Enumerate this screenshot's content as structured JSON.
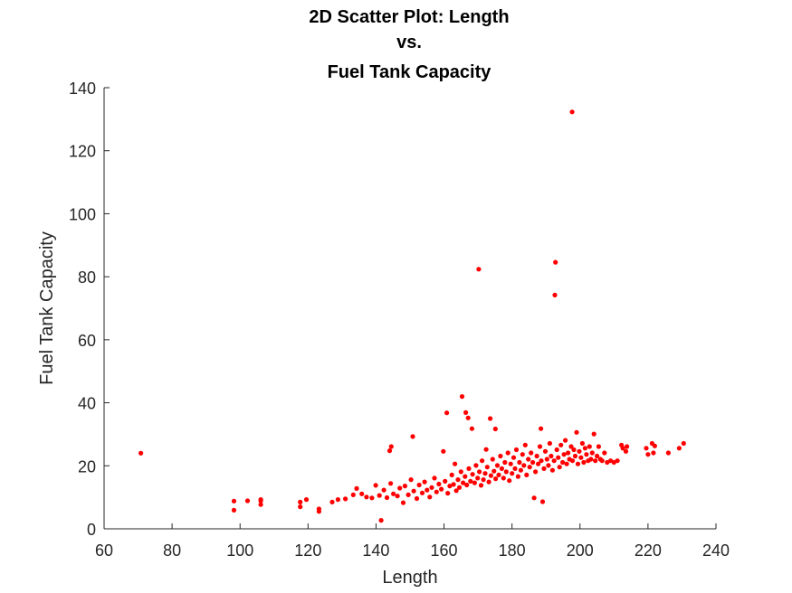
{
  "chart_data": {
    "type": "scatter",
    "title_lines": [
      "2D Scatter Plot: Length",
      "vs.",
      "Fuel Tank Capacity"
    ],
    "xlabel": "Length",
    "ylabel": "Fuel Tank Capacity",
    "xlim": [
      60,
      240
    ],
    "ylim": [
      0,
      140
    ],
    "xticks": [
      60,
      80,
      100,
      120,
      140,
      160,
      180,
      200,
      220,
      240
    ],
    "yticks": [
      0,
      20,
      40,
      60,
      80,
      100,
      120,
      140
    ],
    "grid": false,
    "marker_color": "#ff0000",
    "points": [
      [
        70.8,
        24.0
      ],
      [
        98.2,
        8.8
      ],
      [
        98.2,
        5.9
      ],
      [
        102.2,
        8.9
      ],
      [
        106.1,
        9.3
      ],
      [
        106.1,
        7.7
      ],
      [
        106.1,
        8.9
      ],
      [
        117.7,
        8.5
      ],
      [
        117.7,
        7.0
      ],
      [
        119.5,
        9.3
      ],
      [
        123.2,
        6.3
      ],
      [
        123.2,
        5.5
      ],
      [
        127.1,
        8.5
      ],
      [
        128.8,
        9.3
      ],
      [
        131.0,
        9.5
      ],
      [
        133.3,
        10.8
      ],
      [
        134.3,
        12.8
      ],
      [
        135.8,
        11.1
      ],
      [
        137.2,
        10.1
      ],
      [
        138.8,
        9.8
      ],
      [
        139.9,
        13.8
      ],
      [
        141.0,
        10.6
      ],
      [
        141.5,
        2.7
      ],
      [
        142.3,
        12.3
      ],
      [
        143.2,
        9.9
      ],
      [
        144.3,
        14.4
      ],
      [
        144.0,
        24.8
      ],
      [
        144.5,
        26.1
      ],
      [
        145.1,
        11.1
      ],
      [
        146.3,
        10.4
      ],
      [
        147.0,
        12.9
      ],
      [
        148.0,
        8.3
      ],
      [
        148.5,
        13.6
      ],
      [
        149.5,
        10.8
      ],
      [
        150.3,
        15.6
      ],
      [
        150.8,
        29.3
      ],
      [
        151.1,
        12.0
      ],
      [
        152.0,
        9.6
      ],
      [
        152.7,
        13.9
      ],
      [
        153.6,
        11.4
      ],
      [
        154.3,
        14.9
      ],
      [
        155.0,
        12.3
      ],
      [
        155.8,
        10.1
      ],
      [
        156.4,
        13.1
      ],
      [
        157.2,
        16.1
      ],
      [
        157.8,
        11.7
      ],
      [
        158.5,
        14.2
      ],
      [
        159.2,
        12.6
      ],
      [
        159.8,
        24.6
      ],
      [
        160.3,
        15.1
      ],
      [
        160.8,
        36.8
      ],
      [
        161.1,
        11.3
      ],
      [
        161.7,
        13.6
      ],
      [
        162.3,
        17.1
      ],
      [
        162.8,
        14.1
      ],
      [
        163.2,
        20.6
      ],
      [
        163.6,
        12.1
      ],
      [
        164.1,
        15.6
      ],
      [
        164.5,
        13.1
      ],
      [
        165.0,
        18.1
      ],
      [
        165.3,
        42.0
      ],
      [
        165.6,
        14.6
      ],
      [
        166.2,
        16.6
      ],
      [
        166.4,
        36.9
      ],
      [
        166.7,
        13.9
      ],
      [
        167.1,
        35.2
      ],
      [
        167.3,
        19.1
      ],
      [
        167.8,
        15.1
      ],
      [
        168.2,
        31.8
      ],
      [
        168.4,
        17.3
      ],
      [
        169.0,
        14.6
      ],
      [
        169.4,
        20.1
      ],
      [
        169.9,
        16.1
      ],
      [
        170.2,
        82.4
      ],
      [
        170.4,
        18.1
      ],
      [
        170.9,
        13.8
      ],
      [
        171.2,
        21.6
      ],
      [
        171.6,
        15.6
      ],
      [
        172.1,
        17.6
      ],
      [
        172.4,
        25.2
      ],
      [
        172.7,
        19.6
      ],
      [
        173.2,
        14.9
      ],
      [
        173.6,
        35.0
      ],
      [
        173.8,
        16.9
      ],
      [
        174.3,
        22.1
      ],
      [
        174.7,
        18.3
      ],
      [
        175.1,
        31.7
      ],
      [
        175.2,
        15.9
      ],
      [
        175.7,
        20.1
      ],
      [
        176.1,
        17.1
      ],
      [
        176.6,
        23.1
      ],
      [
        177.0,
        19.1
      ],
      [
        177.5,
        16.1
      ],
      [
        177.9,
        21.1
      ],
      [
        178.3,
        18.1
      ],
      [
        178.8,
        24.1
      ],
      [
        179.2,
        15.3
      ],
      [
        179.6,
        20.6
      ],
      [
        180.0,
        17.6
      ],
      [
        180.5,
        22.6
      ],
      [
        180.9,
        19.1
      ],
      [
        181.3,
        25.1
      ],
      [
        181.8,
        16.6
      ],
      [
        182.2,
        21.1
      ],
      [
        182.6,
        18.6
      ],
      [
        183.1,
        23.6
      ],
      [
        183.5,
        20.1
      ],
      [
        183.9,
        26.6
      ],
      [
        184.3,
        17.1
      ],
      [
        184.8,
        22.1
      ],
      [
        185.2,
        19.6
      ],
      [
        185.6,
        24.1
      ],
      [
        186.1,
        21.1
      ],
      [
        186.5,
        9.8
      ],
      [
        186.9,
        18.1
      ],
      [
        187.3,
        23.1
      ],
      [
        187.7,
        20.6
      ],
      [
        188.2,
        26.1
      ],
      [
        188.5,
        31.8
      ],
      [
        188.6,
        21.6
      ],
      [
        189.0,
        8.6
      ],
      [
        189.4,
        19.1
      ],
      [
        189.8,
        24.6
      ],
      [
        190.3,
        22.1
      ],
      [
        190.7,
        20.1
      ],
      [
        191.1,
        27.1
      ],
      [
        191.5,
        23.1
      ],
      [
        191.9,
        18.6
      ],
      [
        192.4,
        21.6
      ],
      [
        192.6,
        74.2
      ],
      [
        192.8,
        84.6
      ],
      [
        193.2,
        25.1
      ],
      [
        193.6,
        22.6
      ],
      [
        194.0,
        19.6
      ],
      [
        194.4,
        26.6
      ],
      [
        194.9,
        21.1
      ],
      [
        195.3,
        23.6
      ],
      [
        195.7,
        28.1
      ],
      [
        196.1,
        20.6
      ],
      [
        196.5,
        24.1
      ],
      [
        196.9,
        22.1
      ],
      [
        197.4,
        26.1
      ],
      [
        197.7,
        132.3
      ],
      [
        197.8,
        21.6
      ],
      [
        198.2,
        25.1
      ],
      [
        198.6,
        23.1
      ],
      [
        199.0,
        30.6
      ],
      [
        199.4,
        20.6
      ],
      [
        199.8,
        24.6
      ],
      [
        200.3,
        22.6
      ],
      [
        200.7,
        27.1
      ],
      [
        201.1,
        21.1
      ],
      [
        201.5,
        25.6
      ],
      [
        201.9,
        23.6
      ],
      [
        202.4,
        21.6
      ],
      [
        202.8,
        26.1
      ],
      [
        203.2,
        22.1
      ],
      [
        203.6,
        24.1
      ],
      [
        204.1,
        30.1
      ],
      [
        204.5,
        21.6
      ],
      [
        205.0,
        23.1
      ],
      [
        205.5,
        26.1
      ],
      [
        206.0,
        22.1
      ],
      [
        206.5,
        21.6
      ],
      [
        207.2,
        24.1
      ],
      [
        208.0,
        21.1
      ],
      [
        209.0,
        21.6
      ],
      [
        210.0,
        21.1
      ],
      [
        211.0,
        21.6
      ],
      [
        212.2,
        26.6
      ],
      [
        212.6,
        25.6
      ],
      [
        213.5,
        24.6
      ],
      [
        213.8,
        26.1
      ],
      [
        219.5,
        25.6
      ],
      [
        220.0,
        23.6
      ],
      [
        221.2,
        27.1
      ],
      [
        221.6,
        24.1
      ],
      [
        222.0,
        26.3
      ],
      [
        226.0,
        24.1
      ],
      [
        229.2,
        25.6
      ],
      [
        230.5,
        27.1
      ]
    ]
  }
}
